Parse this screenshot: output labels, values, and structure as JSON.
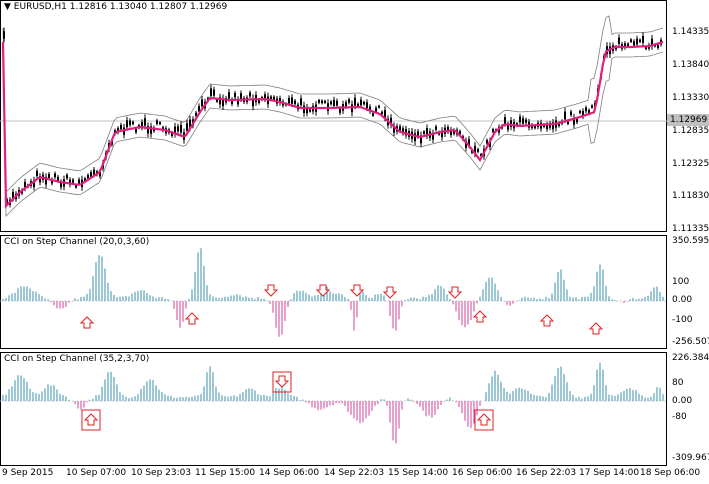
{
  "main": {
    "title": "EURUSD,H1  1.12816 1.13040 1.12807 1.12969",
    "price_levels": [
      "1.14335",
      "1.13840",
      "1.13330",
      "1.12835",
      "1.12325",
      "1.11830",
      "1.11335"
    ],
    "current_price": "1.12969",
    "symbol": "EURUSD",
    "timeframe": "H1",
    "open": "1.12816",
    "high": "1.13040",
    "low": "1.12807",
    "close": "1.12969"
  },
  "indicator1": {
    "title": "CCI on Step Channel (20,0,3,60)",
    "levels": [
      "350.5956",
      "100",
      "0.00",
      "-100",
      "-256.5072"
    ]
  },
  "indicator2": {
    "title": "CCI on Step Channel (35,2,3,70)",
    "levels": [
      "226.3847",
      "80",
      "0.00",
      "-80",
      "-309.9671"
    ]
  },
  "time_axis": [
    "9 Sep 2015",
    "10 Sep 07:00",
    "10 Sep 23:03",
    "11 Sep 15:00",
    "14 Sep 06:00",
    "14 Sep 22:03",
    "15 Sep 14:00",
    "16 Sep 06:00",
    "16 Sep 22:03",
    "17 Sep 14:00",
    "18 Sep 06:00"
  ],
  "colors": {
    "candles": "#000000",
    "ma_line": "#e0207f",
    "channel": "#808080",
    "cci_positive": "#3a8fa8",
    "cci_negative": "#d6409a",
    "arrow": "#e02020",
    "background": "#ffffff"
  }
}
